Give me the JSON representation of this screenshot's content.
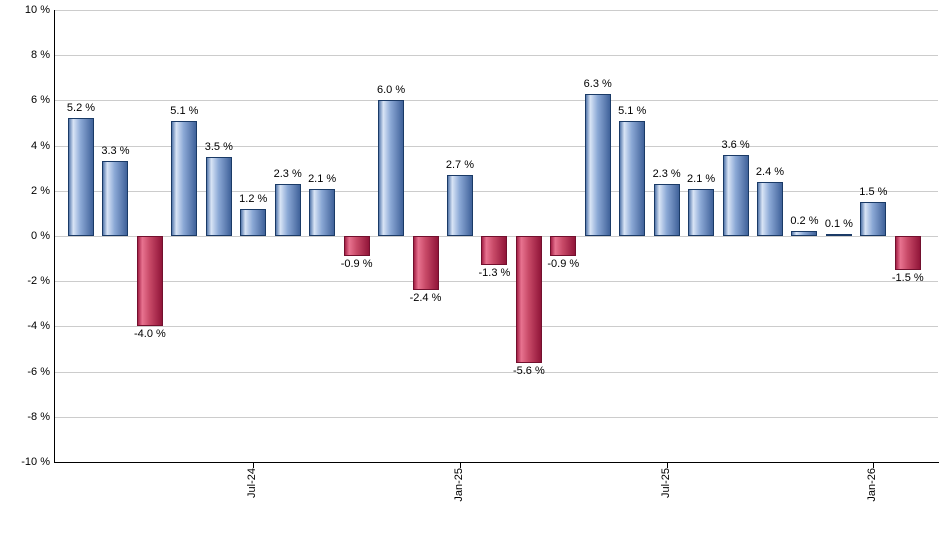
{
  "chart_data": {
    "type": "bar",
    "title": "",
    "xlabel": "",
    "ylabel": "",
    "grid": true,
    "y_axis": {
      "min": -10,
      "max": 10,
      "step": 2,
      "tick_labels": [
        "10 %",
        "8 %",
        "6 %",
        "4 %",
        "2 %",
        "0 %",
        "-2 %",
        "-4 %",
        "-6 %",
        "-8 %",
        "-10 %"
      ]
    },
    "x_axis": {
      "ticks": [
        {
          "bar_index": 5,
          "label": "Jul-24"
        },
        {
          "bar_index": 11,
          "label": "Jan-25"
        },
        {
          "bar_index": 17,
          "label": "Jul-25"
        },
        {
          "bar_index": 23,
          "label": "Jan-26"
        }
      ]
    },
    "bars": [
      {
        "value": 5.2,
        "label": "5.2 %"
      },
      {
        "value": 3.3,
        "label": "3.3 %"
      },
      {
        "value": -4.0,
        "label": "-4.0 %"
      },
      {
        "value": 5.1,
        "label": "5.1 %"
      },
      {
        "value": 3.5,
        "label": "3.5 %"
      },
      {
        "value": 1.2,
        "label": "1.2 %"
      },
      {
        "value": 2.3,
        "label": "2.3 %"
      },
      {
        "value": 2.1,
        "label": "2.1 %"
      },
      {
        "value": -0.9,
        "label": "-0.9 %"
      },
      {
        "value": 6.0,
        "label": "6.0 %"
      },
      {
        "value": -2.4,
        "label": "-2.4 %"
      },
      {
        "value": 2.7,
        "label": "2.7 %"
      },
      {
        "value": -1.3,
        "label": "-1.3 %"
      },
      {
        "value": -5.6,
        "label": "-5.6 %"
      },
      {
        "value": -0.9,
        "label": "-0.9 %"
      },
      {
        "value": 6.3,
        "label": "6.3 %"
      },
      {
        "value": 5.1,
        "label": "5.1 %"
      },
      {
        "value": 2.3,
        "label": "2.3 %"
      },
      {
        "value": 2.1,
        "label": "2.1 %"
      },
      {
        "value": 3.6,
        "label": "3.6 %"
      },
      {
        "value": 2.4,
        "label": "2.4 %"
      },
      {
        "value": 0.2,
        "label": "0.2 %"
      },
      {
        "value": 0.1,
        "label": "0.1 %"
      },
      {
        "value": 1.5,
        "label": "1.5 %"
      },
      {
        "value": -1.5,
        "label": "-1.5 %"
      }
    ],
    "colors": {
      "positive_bar_mid": "#8ca9d6",
      "positive_bar_highlight": "#d9e5f6",
      "positive_bar_dark": "#40629a",
      "positive_bar_border": "#1a3a66",
      "negative_bar_mid": "#c84a68",
      "negative_bar_highlight": "#e87390",
      "negative_bar_dark": "#911539",
      "negative_bar_border": "#72102e",
      "gridline": "#cccccc",
      "axis": "#000000",
      "label": "#000000",
      "background": "#ffffff"
    }
  }
}
